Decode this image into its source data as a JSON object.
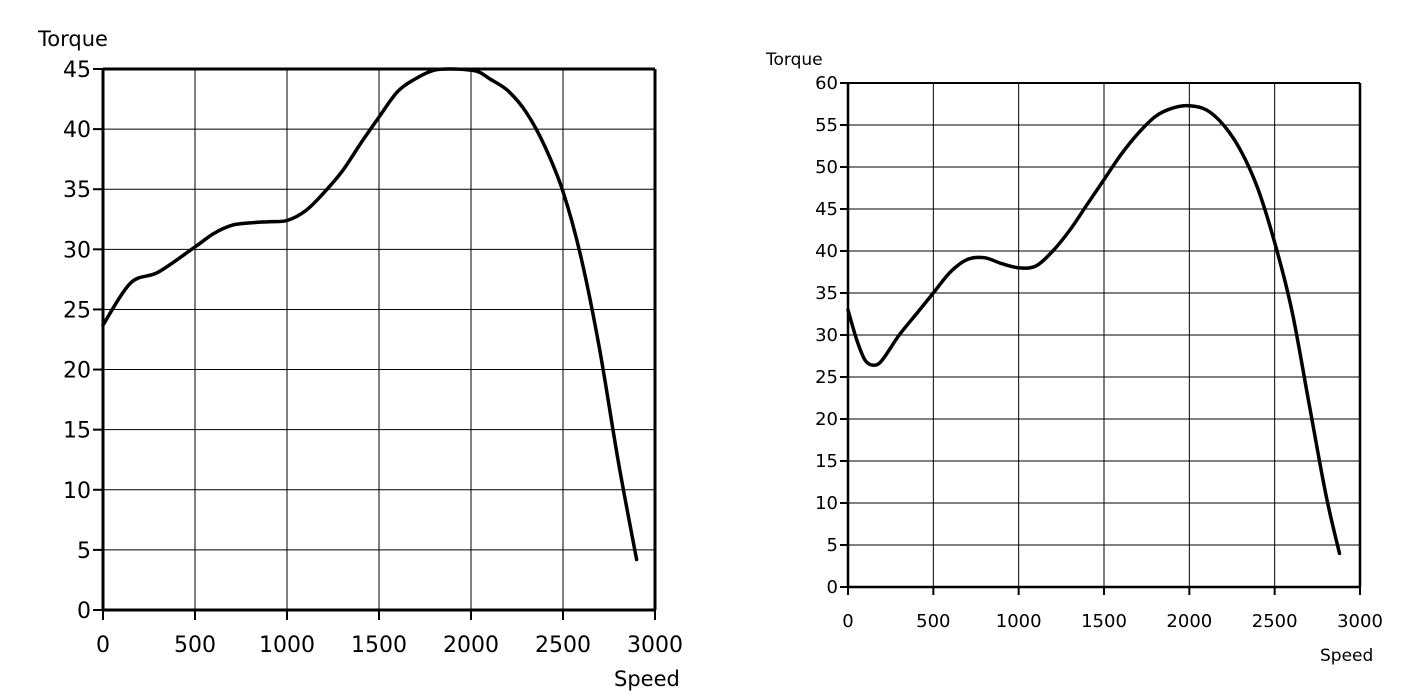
{
  "chart_data": [
    {
      "type": "line",
      "title": "",
      "xlabel": "Speed",
      "ylabel": "Torque",
      "xlim": [
        0,
        3000
      ],
      "ylim": [
        0,
        45
      ],
      "grid": true,
      "x_ticks": [
        "0",
        "500",
        "1000",
        "1500",
        "2000",
        "2500",
        "3000"
      ],
      "y_ticks": [
        "0",
        "5",
        "10",
        "15",
        "20",
        "25",
        "30",
        "35",
        "40",
        "45"
      ],
      "series": [
        {
          "x": [
            0,
            150,
            300,
            500,
            600,
            700,
            800,
            900,
            1000,
            1100,
            1200,
            1300,
            1400,
            1500,
            1600,
            1700,
            1800,
            1900,
            2000,
            2050,
            2100,
            2200,
            2300,
            2400,
            2500,
            2600,
            2700,
            2800,
            2900
          ],
          "values": [
            23.7,
            27.2,
            28.1,
            30.2,
            31.3,
            32.0,
            32.2,
            32.3,
            32.4,
            33.2,
            34.7,
            36.5,
            38.8,
            41.0,
            43.1,
            44.2,
            44.9,
            45.0,
            44.9,
            44.7,
            44.2,
            43.2,
            41.4,
            38.6,
            34.8,
            29.2,
            21.6,
            12.4,
            4.2
          ]
        }
      ]
    },
    {
      "type": "line",
      "title": "",
      "xlabel": "Speed",
      "ylabel": "Torque",
      "xlim": [
        0,
        3000
      ],
      "ylim": [
        0,
        60
      ],
      "grid": true,
      "x_ticks": [
        "0",
        "500",
        "1000",
        "1500",
        "2000",
        "2500",
        "3000"
      ],
      "y_ticks": [
        "0",
        "5",
        "10",
        "15",
        "20",
        "25",
        "30",
        "35",
        "40",
        "45",
        "50",
        "55",
        "60"
      ],
      "series": [
        {
          "x": [
            0,
            50,
            100,
            150,
            200,
            300,
            400,
            500,
            600,
            700,
            800,
            900,
            1000,
            1100,
            1200,
            1300,
            1400,
            1500,
            1600,
            1700,
            1800,
            1900,
            2000,
            2100,
            2200,
            2300,
            2400,
            2500,
            2600,
            2700,
            2800,
            2880
          ],
          "values": [
            33.0,
            29.5,
            27.0,
            26.4,
            27.0,
            30.0,
            32.5,
            35.0,
            37.5,
            39.0,
            39.2,
            38.5,
            38.0,
            38.2,
            40.0,
            42.5,
            45.5,
            48.5,
            51.5,
            54.0,
            56.0,
            57.0,
            57.3,
            56.8,
            55.0,
            52.0,
            47.5,
            41.0,
            33.0,
            22.0,
            11.0,
            4.0
          ]
        }
      ]
    }
  ]
}
